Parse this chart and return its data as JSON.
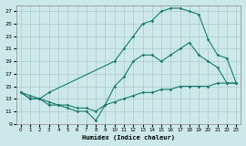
{
  "xlabel": "Humidex (Indice chaleur)",
  "bg_color": "#cce8e8",
  "grid_color": "#aacccc",
  "line_color": "#1a7a6e",
  "xlim": [
    -0.5,
    23.5
  ],
  "ylim": [
    9,
    28
  ],
  "xticks": [
    0,
    1,
    2,
    3,
    4,
    5,
    6,
    7,
    8,
    9,
    10,
    11,
    12,
    13,
    14,
    15,
    16,
    17,
    18,
    19,
    20,
    21,
    22,
    23
  ],
  "yticks": [
    9,
    11,
    13,
    15,
    17,
    19,
    21,
    23,
    25,
    27
  ],
  "line1_x": [
    0,
    1,
    2,
    3,
    4,
    5,
    6,
    7,
    8,
    9,
    10,
    11,
    12,
    13,
    14,
    15,
    16,
    17,
    18,
    19,
    20,
    21,
    22,
    23
  ],
  "line1_y": [
    14,
    13.5,
    13,
    12.5,
    12,
    12,
    11.5,
    11.5,
    11,
    12,
    12.5,
    13,
    13.5,
    14,
    14,
    14.5,
    14.5,
    15,
    15,
    15,
    15,
    15.5,
    15.5,
    15.5
  ],
  "line2_x": [
    0,
    1,
    2,
    3,
    4,
    5,
    6,
    7,
    8,
    9,
    10,
    11,
    12,
    13,
    14,
    15,
    16,
    17,
    18,
    19,
    20,
    21,
    22,
    23
  ],
  "line2_y": [
    14,
    13,
    13,
    12,
    12,
    11.5,
    11,
    11,
    9.5,
    12,
    15,
    16.5,
    19,
    20,
    20,
    19,
    20,
    21,
    22,
    20,
    19,
    18,
    15.5,
    15.5
  ],
  "line3_x": [
    0,
    1,
    2,
    3,
    10,
    11,
    12,
    13,
    14,
    15,
    16,
    17,
    18,
    19,
    20,
    21,
    22,
    23
  ],
  "line3_y": [
    14,
    13,
    13,
    14,
    19,
    21,
    23,
    25,
    25.5,
    27,
    27.5,
    27.5,
    27,
    26.5,
    22.5,
    20,
    19.5,
    15.5
  ]
}
